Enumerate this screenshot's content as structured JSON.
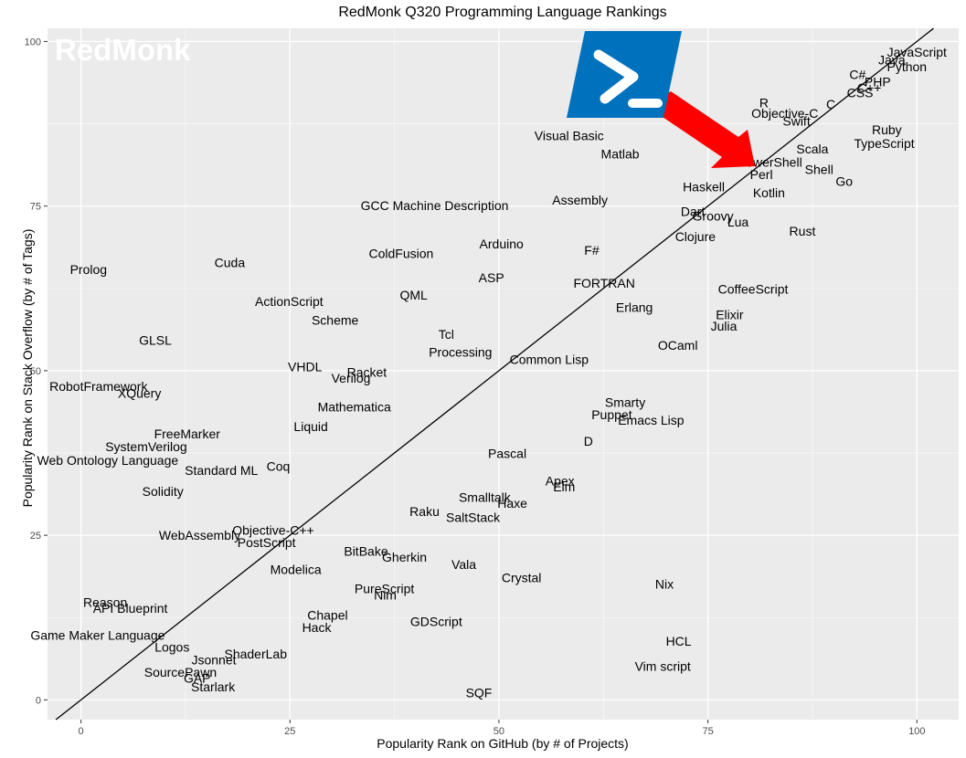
{
  "chart_data": {
    "type": "scatter",
    "title": "RedMonk Q320 Programming Language Rankings",
    "xlabel": "Popularity Rank on GitHub (by # of Projects)",
    "ylabel": "Popularity Rank on Stack Overflow (by # of Tags)",
    "xlim": [
      -4,
      105
    ],
    "ylim": [
      -3,
      102
    ],
    "xticks": [
      0,
      25,
      50,
      75,
      100
    ],
    "yticks": [
      0,
      25,
      50,
      75,
      100
    ],
    "grid": true,
    "reference_line": "y = x",
    "points": [
      {
        "label": "JavaScript",
        "x": 100,
        "y": 98.4
      },
      {
        "label": "Java",
        "x": 97,
        "y": 97.2
      },
      {
        "label": "Python",
        "x": 98.8,
        "y": 96.2
      },
      {
        "label": "C#",
        "x": 92.9,
        "y": 95.0
      },
      {
        "label": "PHP",
        "x": 95.3,
        "y": 93.9
      },
      {
        "label": "C++",
        "x": 94.3,
        "y": 93.0
      },
      {
        "label": "CSS",
        "x": 93.2,
        "y": 92.2
      },
      {
        "label": "C",
        "x": 89.7,
        "y": 90.5
      },
      {
        "label": "R",
        "x": 81.7,
        "y": 90.7
      },
      {
        "label": "Objective-C",
        "x": 84.2,
        "y": 89.1
      },
      {
        "label": "Swift",
        "x": 85.6,
        "y": 87.9
      },
      {
        "label": "Ruby",
        "x": 96.4,
        "y": 86.6
      },
      {
        "label": "Visual Basic",
        "x": 58.4,
        "y": 85.7
      },
      {
        "label": "TypeScript",
        "x": 96.1,
        "y": 84.5
      },
      {
        "label": "Scala",
        "x": 87.5,
        "y": 83.7
      },
      {
        "label": "Matlab",
        "x": 64.5,
        "y": 82.9
      },
      {
        "label": "PowerShell",
        "x": 82.4,
        "y": 81.7
      },
      {
        "label": "Shell",
        "x": 88.3,
        "y": 80.6
      },
      {
        "label": "Perl",
        "x": 81.4,
        "y": 79.8
      },
      {
        "label": "Go",
        "x": 91.3,
        "y": 78.8
      },
      {
        "label": "Haskell",
        "x": 74.5,
        "y": 77.9
      },
      {
        "label": "Kotlin",
        "x": 82.3,
        "y": 77.0
      },
      {
        "label": "Assembly",
        "x": 59.7,
        "y": 75.9
      },
      {
        "label": "GCC Machine Description",
        "x": 42.3,
        "y": 75.1
      },
      {
        "label": "Dart",
        "x": 73.2,
        "y": 74.2
      },
      {
        "label": "Groovy",
        "x": 75.6,
        "y": 73.5
      },
      {
        "label": "Lua",
        "x": 78.6,
        "y": 72.6
      },
      {
        "label": "Rust",
        "x": 86.3,
        "y": 71.2
      },
      {
        "label": "Clojure",
        "x": 73.5,
        "y": 70.4
      },
      {
        "label": "Arduino",
        "x": 50.3,
        "y": 69.3
      },
      {
        "label": "F#",
        "x": 61.1,
        "y": 68.3
      },
      {
        "label": "ColdFusion",
        "x": 38.3,
        "y": 67.8
      },
      {
        "label": "Cuda",
        "x": 17.8,
        "y": 66.4
      },
      {
        "label": "Prolog",
        "x": 0.9,
        "y": 65.4
      },
      {
        "label": "ASP",
        "x": 49.1,
        "y": 64.1
      },
      {
        "label": "FORTRAN",
        "x": 62.6,
        "y": 63.3
      },
      {
        "label": "CoffeeScript",
        "x": 80.4,
        "y": 62.4
      },
      {
        "label": "QML",
        "x": 39.8,
        "y": 61.5
      },
      {
        "label": "ActionScript",
        "x": 24.9,
        "y": 60.5
      },
      {
        "label": "Erlang",
        "x": 66.2,
        "y": 59.6
      },
      {
        "label": "Elixir",
        "x": 77.6,
        "y": 58.5
      },
      {
        "label": "Scheme",
        "x": 30.4,
        "y": 57.7
      },
      {
        "label": "Julia",
        "x": 76.9,
        "y": 56.8
      },
      {
        "label": "Tcl",
        "x": 43.7,
        "y": 55.5
      },
      {
        "label": "GLSL",
        "x": 8.9,
        "y": 54.6
      },
      {
        "label": "OCaml",
        "x": 71.4,
        "y": 53.9
      },
      {
        "label": "Processing",
        "x": 45.4,
        "y": 52.8
      },
      {
        "label": "Common Lisp",
        "x": 56.0,
        "y": 51.7
      },
      {
        "label": "VHDL",
        "x": 26.8,
        "y": 50.6
      },
      {
        "label": "Racket",
        "x": 34.2,
        "y": 49.8
      },
      {
        "label": "Verilog",
        "x": 32.3,
        "y": 48.9
      },
      {
        "label": "RobotFramework",
        "x": 2.1,
        "y": 47.6
      },
      {
        "label": "XQuery",
        "x": 7.0,
        "y": 46.6
      },
      {
        "label": "Smarty",
        "x": 65.1,
        "y": 45.2
      },
      {
        "label": "Mathematica",
        "x": 32.7,
        "y": 44.5
      },
      {
        "label": "Puppet",
        "x": 63.5,
        "y": 43.3
      },
      {
        "label": "Emacs Lisp",
        "x": 68.2,
        "y": 42.5
      },
      {
        "label": "Liquid",
        "x": 27.5,
        "y": 41.5
      },
      {
        "label": "FreeMarker",
        "x": 12.7,
        "y": 40.4
      },
      {
        "label": "D",
        "x": 60.7,
        "y": 39.3
      },
      {
        "label": "SystemVerilog",
        "x": 7.8,
        "y": 38.5
      },
      {
        "label": "Pascal",
        "x": 51.0,
        "y": 37.4
      },
      {
        "label": "Web Ontology Language",
        "x": 3.2,
        "y": 36.4
      },
      {
        "label": "Coq",
        "x": 23.6,
        "y": 35.5
      },
      {
        "label": "Standard ML",
        "x": 16.8,
        "y": 34.9
      },
      {
        "label": "Apex",
        "x": 57.3,
        "y": 33.3
      },
      {
        "label": "Elm",
        "x": 57.8,
        "y": 32.4
      },
      {
        "label": "Solidity",
        "x": 9.8,
        "y": 31.7
      },
      {
        "label": "Smalltalk",
        "x": 48.3,
        "y": 30.8
      },
      {
        "label": "Haxe",
        "x": 51.6,
        "y": 29.9
      },
      {
        "label": "Raku",
        "x": 41.1,
        "y": 28.6
      },
      {
        "label": "SaltStack",
        "x": 46.9,
        "y": 27.7
      },
      {
        "label": "Objective-C++",
        "x": 23.0,
        "y": 25.8
      },
      {
        "label": "WebAssembly",
        "x": 14.2,
        "y": 25.0
      },
      {
        "label": "PostScript",
        "x": 22.2,
        "y": 23.9
      },
      {
        "label": "BitBake",
        "x": 34.1,
        "y": 22.6
      },
      {
        "label": "Gherkin",
        "x": 38.7,
        "y": 21.7
      },
      {
        "label": "Vala",
        "x": 45.8,
        "y": 20.6
      },
      {
        "label": "Modelica",
        "x": 25.7,
        "y": 19.8
      },
      {
        "label": "Crystal",
        "x": 52.7,
        "y": 18.6
      },
      {
        "label": "Nix",
        "x": 69.8,
        "y": 17.6
      },
      {
        "label": "PureScript",
        "x": 36.3,
        "y": 16.9
      },
      {
        "label": "Nim",
        "x": 36.4,
        "y": 15.9
      },
      {
        "label": "Reason",
        "x": 2.9,
        "y": 14.8
      },
      {
        "label": "API Blueprint",
        "x": 5.9,
        "y": 13.9
      },
      {
        "label": "Chapel",
        "x": 29.5,
        "y": 12.9
      },
      {
        "label": "GDScript",
        "x": 42.5,
        "y": 11.9
      },
      {
        "label": "Hack",
        "x": 28.2,
        "y": 11.0
      },
      {
        "label": "Game Maker Language",
        "x": 2.0,
        "y": 9.8
      },
      {
        "label": "HCL",
        "x": 71.5,
        "y": 8.9
      },
      {
        "label": "Logos",
        "x": 10.9,
        "y": 8.0
      },
      {
        "label": "ShaderLab",
        "x": 20.9,
        "y": 7.0
      },
      {
        "label": "Jsonnet",
        "x": 15.9,
        "y": 6.1
      },
      {
        "label": "Vim script",
        "x": 69.6,
        "y": 5.1
      },
      {
        "label": "SourcePawn",
        "x": 11.9,
        "y": 4.2
      },
      {
        "label": "GAP",
        "x": 13.9,
        "y": 3.3
      },
      {
        "label": "Starlark",
        "x": 15.8,
        "y": 2.0
      },
      {
        "label": "SQF",
        "x": 47.6,
        "y": 1.1
      }
    ]
  },
  "branding": {
    "logo_text": "RedMonk",
    "logo_color": "#ffffff",
    "powershell_icon": "powershell-icon",
    "powershell_color": "#0071bc",
    "arrow_color": "#ff0000"
  },
  "colors": {
    "panel_background": "#ebebeb",
    "grid_major": "#ffffff",
    "line": "#000000",
    "text": "#000000"
  }
}
